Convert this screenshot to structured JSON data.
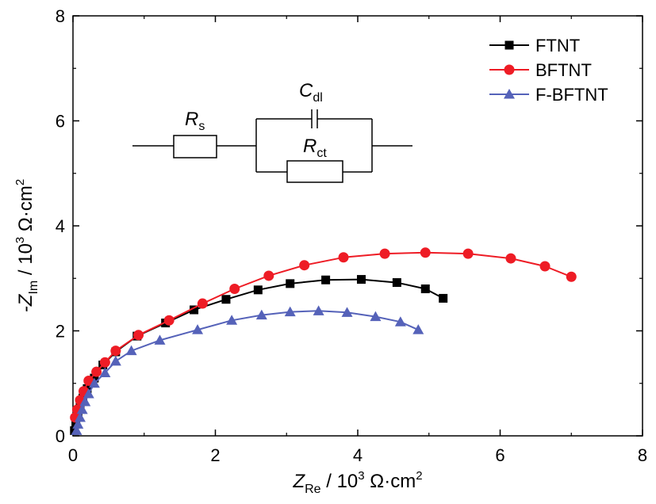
{
  "chart_data": {
    "type": "scatter",
    "xlabel": {
      "main": "Z",
      "sub": "Re",
      "rest": " / 10",
      "sup": "3",
      "unit": " Ω·cm",
      "unit_sup": "2"
    },
    "ylabel": {
      "main": "-Z",
      "sub": "Im",
      "rest": " / 10",
      "sup": "3",
      "unit": " Ω·cm",
      "unit_sup": "2"
    },
    "xlim": [
      0,
      8
    ],
    "ylim": [
      0,
      8
    ],
    "xticks": [
      "0",
      "2",
      "4",
      "6",
      "8"
    ],
    "yticks": [
      "0",
      "2",
      "4",
      "6",
      "8"
    ],
    "grid": false,
    "legend": "top-right",
    "series": [
      {
        "name": "FTNT",
        "color": "#000000",
        "marker": "square",
        "x": [
          0.02,
          0.04,
          0.07,
          0.1,
          0.14,
          0.2,
          0.3,
          0.42,
          0.6,
          0.9,
          1.3,
          1.7,
          2.15,
          2.6,
          3.05,
          3.55,
          4.05,
          4.55,
          4.95,
          5.2
        ],
        "y": [
          0.1,
          0.25,
          0.4,
          0.55,
          0.72,
          0.9,
          1.1,
          1.35,
          1.6,
          1.9,
          2.15,
          2.4,
          2.6,
          2.78,
          2.9,
          2.97,
          2.98,
          2.92,
          2.8,
          2.62
        ]
      },
      {
        "name": "BFTNT",
        "color": "#ee1c25",
        "marker": "circle",
        "x": [
          0.03,
          0.06,
          0.1,
          0.15,
          0.22,
          0.33,
          0.45,
          0.6,
          0.92,
          1.35,
          1.82,
          2.27,
          2.75,
          3.25,
          3.8,
          4.38,
          4.95,
          5.55,
          6.15,
          6.63,
          7.0
        ],
        "y": [
          0.35,
          0.5,
          0.68,
          0.85,
          1.05,
          1.22,
          1.4,
          1.62,
          1.92,
          2.2,
          2.52,
          2.8,
          3.05,
          3.25,
          3.4,
          3.47,
          3.49,
          3.47,
          3.38,
          3.23,
          3.03
        ]
      },
      {
        "name": "F-BFTNT",
        "color": "#5562b9",
        "marker": "triangle",
        "x": [
          0.05,
          0.07,
          0.1,
          0.13,
          0.17,
          0.22,
          0.3,
          0.45,
          0.6,
          0.82,
          1.22,
          1.75,
          2.23,
          2.65,
          3.05,
          3.45,
          3.85,
          4.25,
          4.6,
          4.85
        ],
        "y": [
          0.1,
          0.22,
          0.35,
          0.5,
          0.65,
          0.8,
          1.0,
          1.2,
          1.42,
          1.62,
          1.82,
          2.02,
          2.2,
          2.3,
          2.36,
          2.38,
          2.35,
          2.27,
          2.17,
          2.02
        ]
      }
    ]
  },
  "circuit": {
    "rs": {
      "main": "R",
      "sub": "s"
    },
    "cdl": {
      "main": "C",
      "sub": "dl"
    },
    "rct": {
      "main": "R",
      "sub": "ct"
    }
  }
}
